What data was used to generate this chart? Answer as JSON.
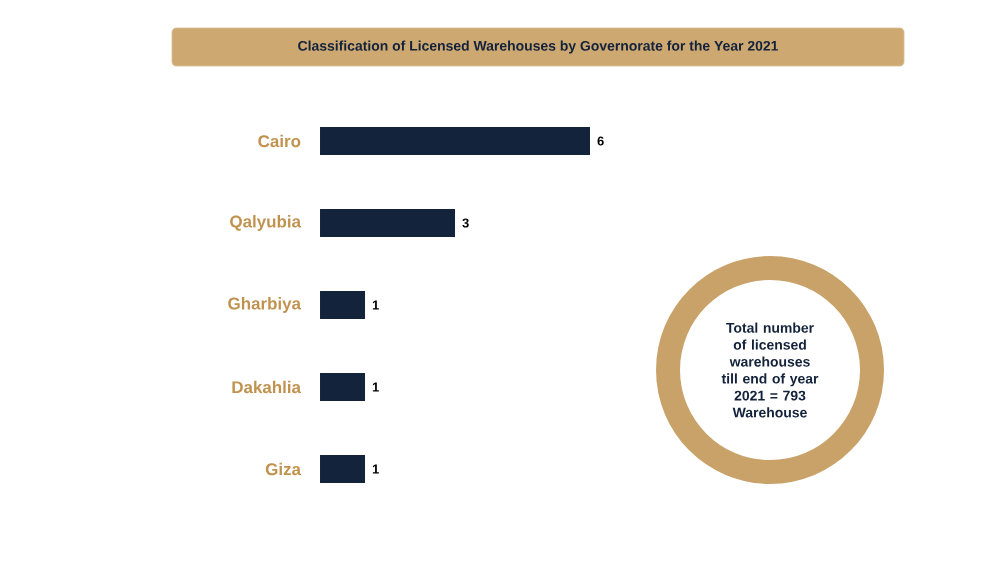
{
  "chart_data": {
    "type": "bar",
    "orientation": "horizontal",
    "title": "Classification of Licensed Warehouses by Governorate for the Year 2021",
    "categories": [
      "Cairo",
      "Qalyubia",
      "Gharbiya",
      "Dakahlia",
      "Giza"
    ],
    "values": [
      6,
      3,
      1,
      1,
      1
    ],
    "color": "#14233c",
    "data_labels": true,
    "annotations": [
      "Total number of licensed warehouses till end of year 2021 = 793 Warehouse"
    ]
  }
}
